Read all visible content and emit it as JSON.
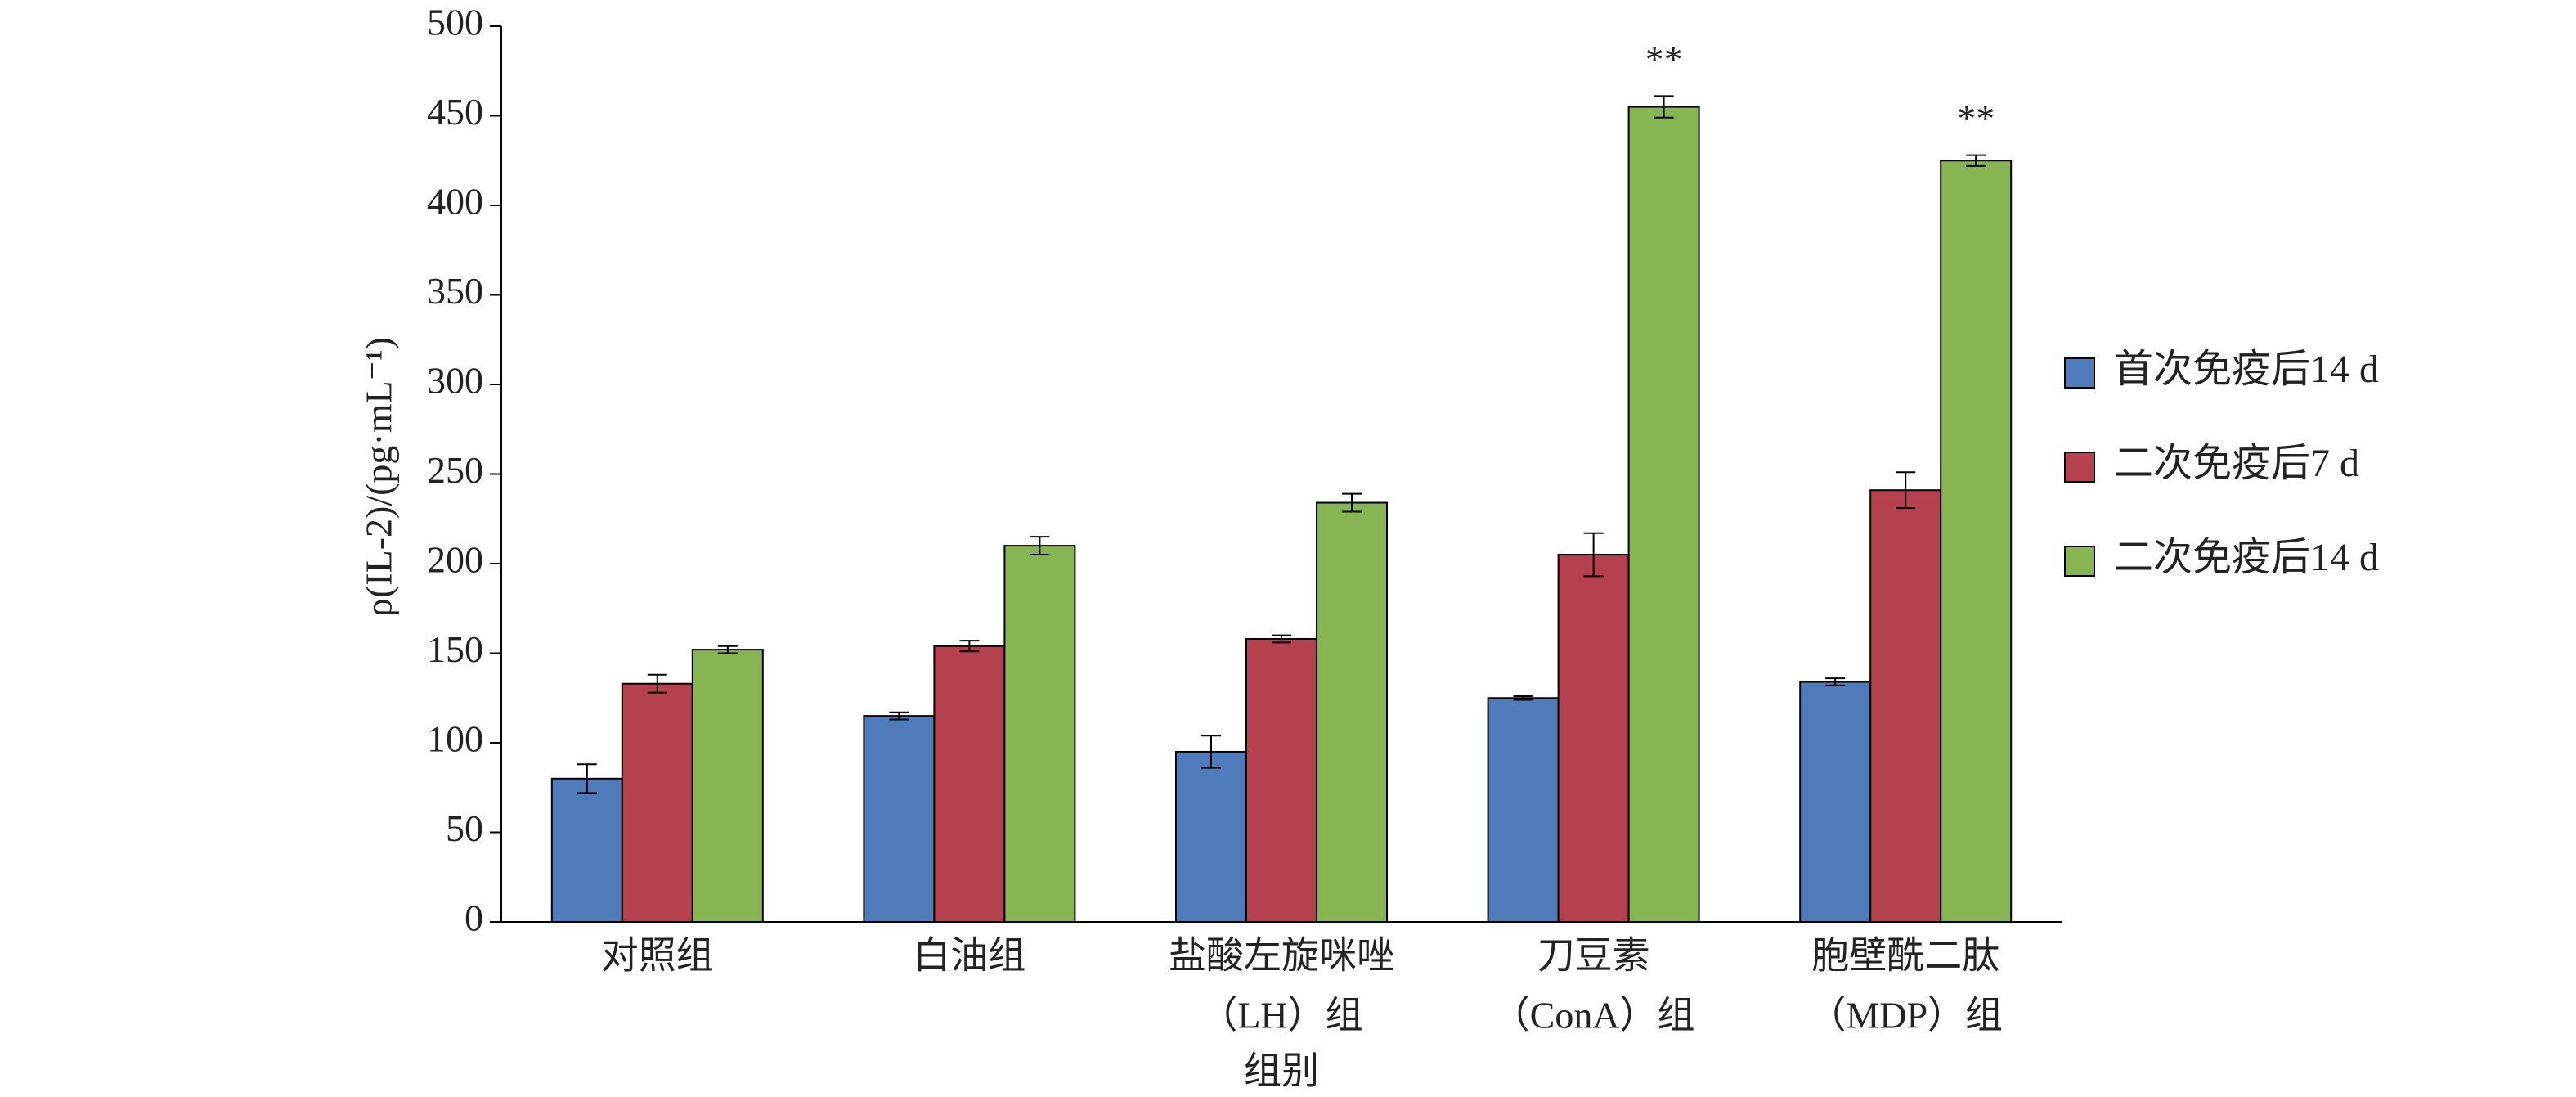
{
  "chart_data": {
    "type": "bar",
    "y_label": "ρ(IL-2)/(pg·mL⁻¹)",
    "x_label": "组别",
    "categories": [
      [
        "对照组"
      ],
      [
        "白油组"
      ],
      [
        "盐酸左旋咪唑",
        "（LH）组"
      ],
      [
        "刀豆素",
        "（ConA）组"
      ],
      [
        "胞壁酰二肽",
        "（MDP）组"
      ]
    ],
    "series": [
      {
        "name": "首次免疫后14 d",
        "color": "#4f7bbb",
        "values": [
          80,
          115,
          95,
          125,
          134
        ],
        "errors": [
          8,
          2,
          9,
          1,
          2
        ]
      },
      {
        "name": "二次免疫后7 d",
        "color": "#b5404e",
        "values": [
          133,
          154,
          158,
          205,
          241
        ],
        "errors": [
          5,
          3,
          2,
          12,
          10
        ]
      },
      {
        "name": "二次免疫后14 d",
        "color": "#86b552",
        "values": [
          152,
          210,
          234,
          455,
          425
        ],
        "errors": [
          2,
          5,
          5,
          6,
          3
        ]
      }
    ],
    "annotations": [
      {
        "text": "**",
        "category": 3,
        "series": 2
      },
      {
        "text": "**",
        "category": 4,
        "series": 2
      }
    ],
    "ylim": [
      0,
      500
    ],
    "yticks": [
      0,
      50,
      100,
      150,
      200,
      250,
      300,
      350,
      400,
      450,
      500
    ],
    "legend": "right"
  }
}
